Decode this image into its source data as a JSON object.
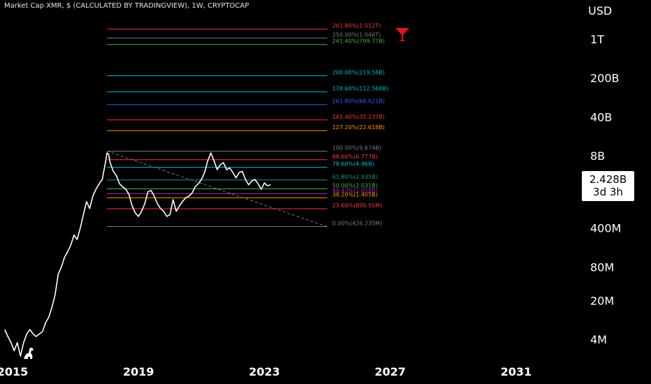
{
  "header": {
    "title": "Market Cap XMR, $ (CALCULATED BY TRADINGVIEW), 1W, CRYPTOCAP",
    "currency": "USD"
  },
  "price_badge": {
    "value": "2.428B",
    "countdown": "3d 3h"
  },
  "colors": {
    "background": "#000000",
    "price_line": "#ffffff",
    "trendline": "#777777",
    "badge_bg": "#ffffff",
    "marker": "#e0141b"
  },
  "icons": {
    "top_marker": "cocktail-glass-icon",
    "logo": "dinosaur-icon"
  },
  "chart_data": {
    "type": "line",
    "title": "Market Cap XMR, $ (CALCULATED BY TRADINGVIEW), 1W, CRYPTOCAP",
    "y_scale": "log",
    "ylim": [
      1500000,
      3000000000000
    ],
    "xlim": [
      2014.6,
      2032.8
    ],
    "y_ticks": [
      {
        "label": "1T",
        "value": 1000000000000
      },
      {
        "label": "200B",
        "value": 200000000000
      },
      {
        "label": "40B",
        "value": 40000000000
      },
      {
        "label": "8B",
        "value": 8000000000
      },
      {
        "label": "400M",
        "value": 400000000
      },
      {
        "label": "80M",
        "value": 80000000
      },
      {
        "label": "20M",
        "value": 20000000
      },
      {
        "label": "4M",
        "value": 4000000
      }
    ],
    "x_ticks": [
      {
        "label": "2015",
        "value": 2015.0
      },
      {
        "label": "2019",
        "value": 2019.0
      },
      {
        "label": "2023",
        "value": 2023.0
      },
      {
        "label": "2027",
        "value": 2027.0
      },
      {
        "label": "2031",
        "value": 2031.0
      }
    ],
    "series": [
      {
        "x": [
          2014.75,
          2014.85,
          2014.95,
          2015.05,
          2015.15,
          2015.25,
          2015.35,
          2015.45,
          2015.55,
          2015.65,
          2015.75,
          2015.85,
          2015.95,
          2016.05,
          2016.15,
          2016.25,
          2016.35,
          2016.45,
          2016.55,
          2016.65,
          2016.75,
          2016.85,
          2016.95,
          2017.05,
          2017.15,
          2017.25,
          2017.35,
          2017.45,
          2017.55,
          2017.65,
          2017.75,
          2017.85,
          2017.95,
          2018.0,
          2018.05,
          2018.1,
          2018.2,
          2018.3,
          2018.4,
          2018.5,
          2018.6,
          2018.7,
          2018.8,
          2018.9,
          2019.0,
          2019.1,
          2019.2,
          2019.3,
          2019.4,
          2019.5,
          2019.6,
          2019.7,
          2019.8,
          2019.9,
          2020.0,
          2020.1,
          2020.2,
          2020.3,
          2020.4,
          2020.5,
          2020.6,
          2020.7,
          2020.8,
          2020.9,
          2021.0,
          2021.1,
          2021.2,
          2021.3,
          2021.4,
          2021.5,
          2021.6,
          2021.7,
          2021.8,
          2021.9,
          2022.0,
          2022.1,
          2022.2,
          2022.3,
          2022.4,
          2022.5,
          2022.6,
          2022.7,
          2022.8,
          2022.9,
          2023.0,
          2023.1,
          2023.2
        ],
        "y": [
          6000000,
          4500000,
          3500000,
          2500000,
          3500000,
          2000000,
          3500000,
          5000000,
          6000000,
          5000000,
          4500000,
          5000000,
          5500000,
          8000000,
          10000000,
          15000000,
          25000000,
          60000000,
          80000000,
          120000000,
          150000000,
          200000000,
          300000000,
          250000000,
          400000000,
          700000000,
          1200000000,
          900000000,
          1500000000,
          2000000000,
          2500000000,
          3000000000,
          6000000000,
          9000000000,
          8500000000,
          6000000000,
          4200000000,
          3500000000,
          2500000000,
          2200000000,
          2000000000,
          1600000000,
          1000000000,
          750000000,
          650000000,
          800000000,
          1100000000,
          1800000000,
          1900000000,
          1500000000,
          1100000000,
          900000000,
          800000000,
          650000000,
          700000000,
          1300000000,
          800000000,
          1000000000,
          1200000000,
          1400000000,
          1500000000,
          1700000000,
          2200000000,
          2500000000,
          3000000000,
          4000000000,
          6500000000,
          9000000000,
          6500000000,
          4500000000,
          5500000000,
          6000000000,
          4500000000,
          4800000000,
          4000000000,
          3200000000,
          4000000000,
          4200000000,
          3000000000,
          2400000000,
          2800000000,
          3000000000,
          2500000000,
          2000000000,
          2600000000,
          2300000000,
          2428000000
        ]
      }
    ],
    "fib_levels": [
      {
        "label": "0.00%(426.235M)",
        "value": 426235000,
        "color": "#787b86"
      },
      {
        "label": "23.60%(890.55M)",
        "value": 890550000,
        "color": "#f23645"
      },
      {
        "label": "38.20%(1.405B)",
        "value": 1405000000,
        "color": "#ff9800"
      },
      {
        "label": "44.43%(1.658B)",
        "value": 1658000000,
        "color": "#9c27b0"
      },
      {
        "label": "50.00%(2.031B)",
        "value": 2031000000,
        "color": "#4caf50"
      },
      {
        "label": "61.80%(2.935B)",
        "value": 2935000000,
        "color": "#089981"
      },
      {
        "label": "78.60%(4.96B)",
        "value": 4960000000,
        "color": "#00bcd4"
      },
      {
        "label": "88.60%(6.777B)",
        "value": 6777000000,
        "color": "#f23645"
      },
      {
        "label": "100.00%(9.674B)",
        "value": 9674000000,
        "color": "#787b86"
      },
      {
        "label": "127.20%(22.618B)",
        "value": 22618000000,
        "color": "#ff9800"
      },
      {
        "label": "141.40%(35.237B)",
        "value": 35237000000,
        "color": "#f23645"
      },
      {
        "label": "161.80%(66.621B)",
        "value": 66621000000,
        "color": "#2962ff"
      },
      {
        "label": "178.60%(112.568B)",
        "value": 112568000000,
        "color": "#00bcd4"
      },
      {
        "label": "200.00%(219.58B)",
        "value": 219580000000,
        "color": "#00bcd4"
      },
      {
        "label": "241.40%(799.77B)",
        "value": 799770000000,
        "color": "#4caf50"
      },
      {
        "label": "250.00%(1.046T)",
        "value": 1046000000000,
        "color": "#787b86"
      },
      {
        "label": "261.80%(1.512T)",
        "value": 1512000000000,
        "color": "#f23645"
      }
    ],
    "fib_x_range": [
      2018.0,
      2025.0
    ],
    "trendline": {
      "x": [
        2018.0,
        2025.0
      ],
      "y": [
        9674000000,
        426235000
      ]
    },
    "grid": false,
    "legend": "none"
  }
}
